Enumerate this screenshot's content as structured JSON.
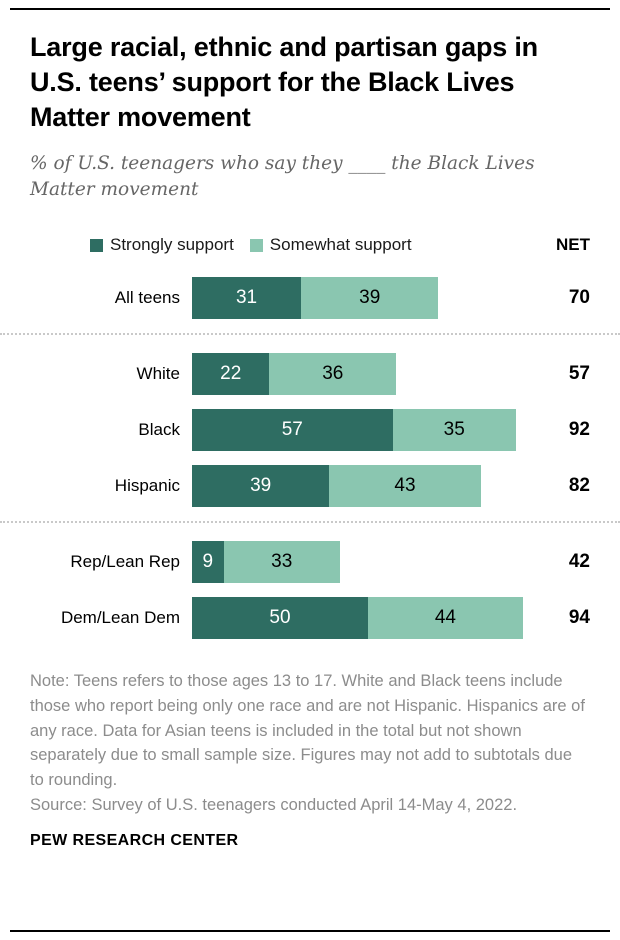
{
  "page": {
    "title": "Large racial, ethnic and partisan gaps in U.S. teens’ support for the Black Lives Matter movement",
    "subtitle": "% of U.S. teenagers who say they ____ the Black Lives Matter movement",
    "note": "Note: Teens refers to those ages 13 to 17. White and Black teens include those who report being only one race and are not Hispanic. Hispanics are of any race. Data for Asian teens is included in the total but not shown separately due to small sample size. Figures may not add to subtotals due to rounding.",
    "source": "Source: Survey of U.S. teenagers conducted April 14-May 4, 2022.",
    "footer": "PEW RESEARCH CENTER"
  },
  "chart_data": {
    "type": "bar",
    "orientation": "horizontal",
    "stacked": true,
    "net_label": "NET",
    "xlim": [
      0,
      100
    ],
    "legend_position": "top",
    "categories": [
      "All teens",
      "White",
      "Black",
      "Hispanic",
      "Rep/Lean Rep",
      "Dem/Lean Dem"
    ],
    "series": [
      {
        "name": "Strongly support",
        "color": "#2e6d62",
        "text_color": "#ffffff",
        "values": [
          31,
          22,
          57,
          39,
          9,
          50
        ]
      },
      {
        "name": "Somewhat support",
        "color": "#8ac6b0",
        "text_color": "#000000",
        "values": [
          39,
          36,
          35,
          43,
          33,
          44
        ]
      }
    ],
    "net_values": [
      70,
      57,
      92,
      82,
      42,
      94
    ],
    "dividers_after": [
      0,
      3
    ]
  }
}
